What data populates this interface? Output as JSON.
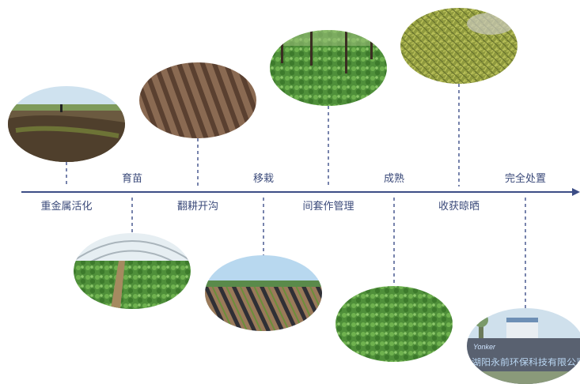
{
  "stages": {
    "s1": "重金属活化",
    "s2": "育苗",
    "s3": "翻耕开沟",
    "s4": "移栽",
    "s5": "间套作管理",
    "s6": "成熟",
    "s7": "收获晾晒",
    "s8": "完全处置"
  },
  "factory_sign": "湖阳永前环保科技有限公司",
  "factory_logo": "Yonker",
  "colors": {
    "timeline": "#3c4d86",
    "label": "#3b4a7a"
  }
}
